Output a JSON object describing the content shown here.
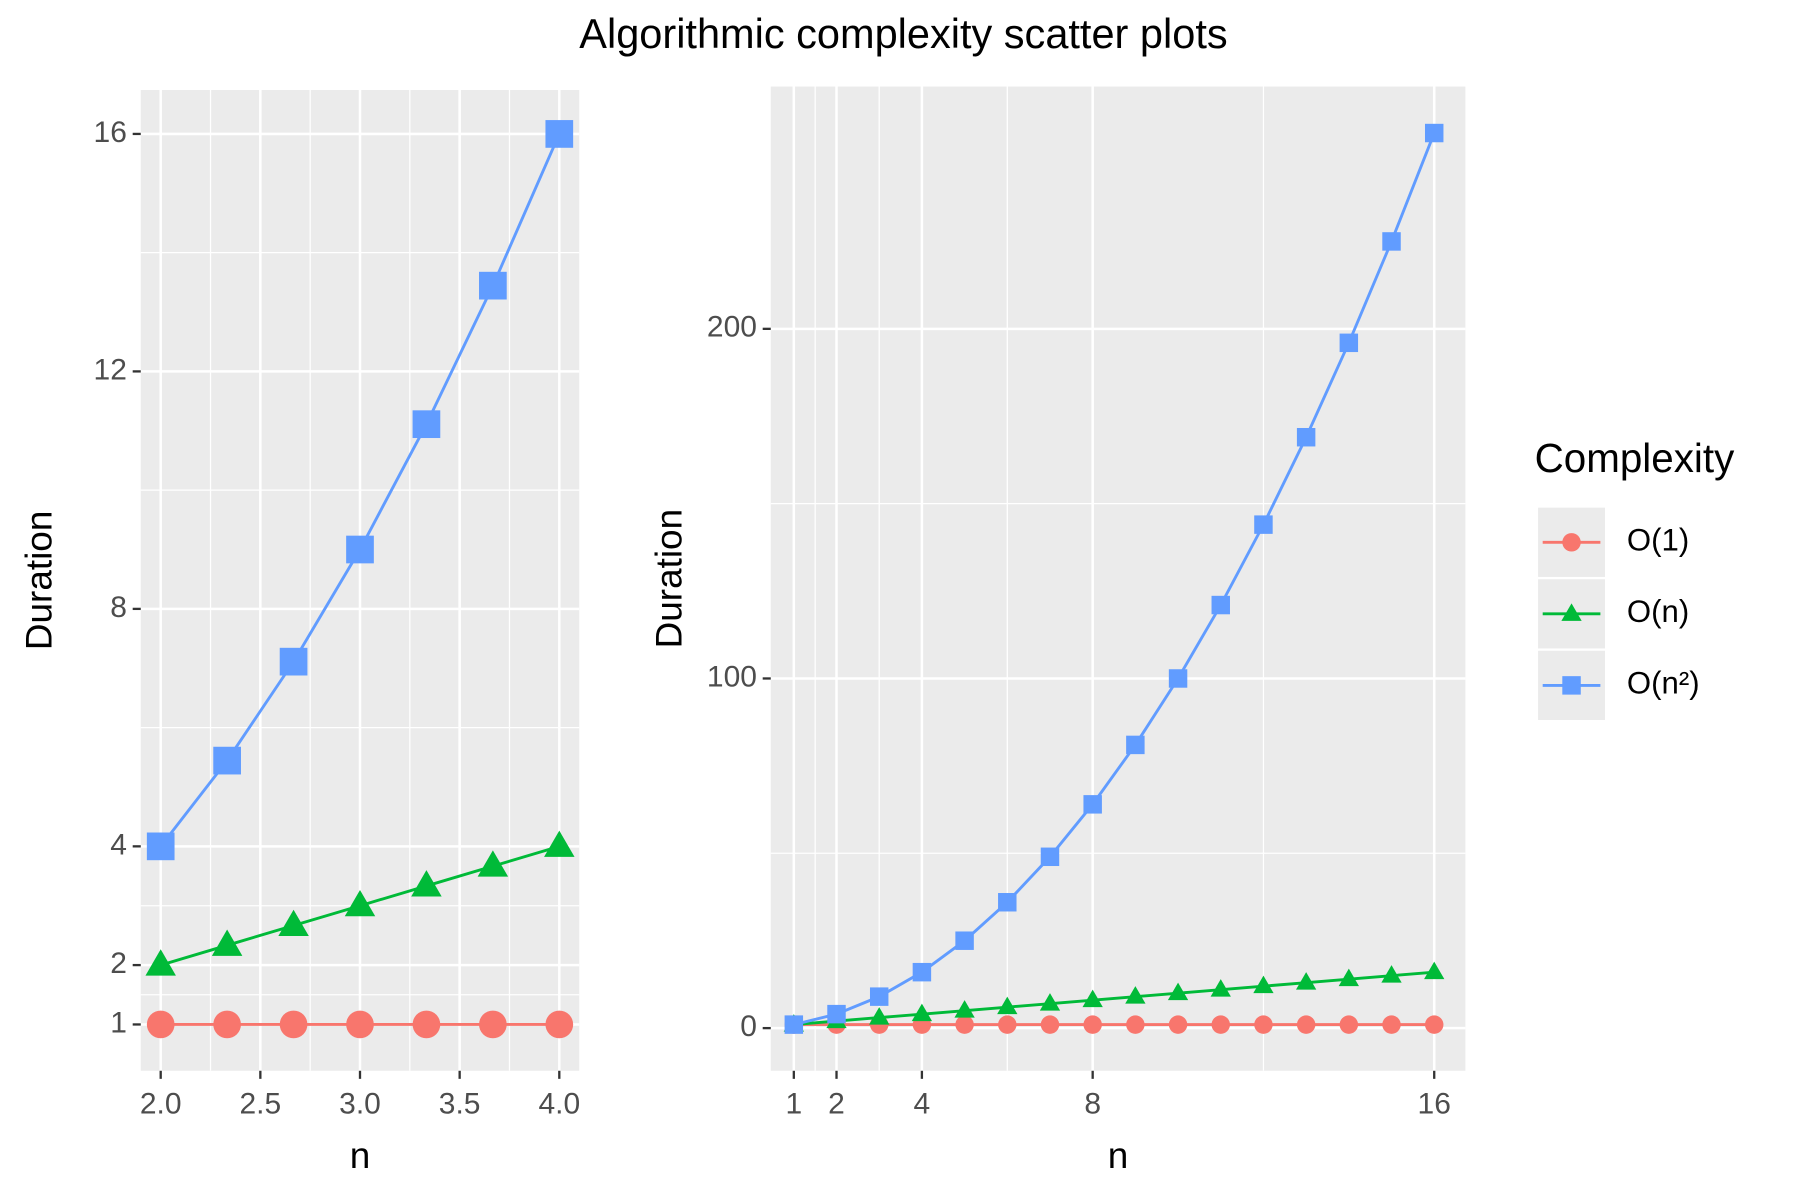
{
  "title": "Algorithmic complexity scatter plots",
  "legend": {
    "title": "Complexity",
    "position": "right",
    "names": [
      "O(1)",
      "O(n)",
      "O(n²)"
    ]
  },
  "chart_data": [
    {
      "type": "line",
      "x_label": "n",
      "y_label": "Duration",
      "x": [
        2,
        2.3333,
        2.6667,
        3,
        3.3333,
        3.6667,
        4
      ],
      "xlim": [
        1.9,
        4.1
      ],
      "ylim": [
        0.22,
        16.74
      ],
      "xticks": [
        {
          "value": 2,
          "label": "2.0"
        },
        2.5,
        {
          "value": 3,
          "label": "3.0"
        },
        3.5,
        {
          "value": 4,
          "label": "4.0"
        }
      ],
      "yticks": [
        1,
        2,
        4,
        8,
        12,
        16
      ],
      "grid": true,
      "series": [
        {
          "color": "#F8766D",
          "marker": "circle",
          "values": [
            1,
            1,
            1,
            1,
            1,
            1,
            1
          ]
        },
        {
          "color": "#00BA38",
          "marker": "triangle",
          "values": [
            2,
            2.3333,
            2.6667,
            3,
            3.3333,
            3.6667,
            4
          ]
        },
        {
          "color": "#619CFF",
          "marker": "square",
          "values": [
            4,
            5.4444,
            7.1111,
            9,
            11.1111,
            13.4444,
            16
          ]
        }
      ]
    },
    {
      "type": "line",
      "x_label": "n",
      "y_label": "Duration",
      "x": [
        1,
        2,
        3,
        4,
        5,
        6,
        7,
        8,
        9,
        10,
        11,
        12,
        13,
        14,
        15,
        16
      ],
      "xlim": [
        0.46,
        16.73
      ],
      "ylim": [
        -12.2,
        269.3
      ],
      "xticks": [
        1,
        2,
        4,
        8,
        16
      ],
      "yticks": [
        0,
        100,
        200
      ],
      "grid": true,
      "series": [
        {
          "color": "#F8766D",
          "marker": "circle",
          "values": [
            1,
            1,
            1,
            1,
            1,
            1,
            1,
            1,
            1,
            1,
            1,
            1,
            1,
            1,
            1,
            1
          ]
        },
        {
          "color": "#00BA38",
          "marker": "triangle",
          "values": [
            1,
            2,
            3,
            4,
            5,
            6,
            7,
            8,
            9,
            10,
            11,
            12,
            13,
            14,
            15,
            16
          ]
        },
        {
          "color": "#619CFF",
          "marker": "square",
          "values": [
            1,
            4,
            9,
            16,
            25,
            36,
            49,
            64,
            81,
            100,
            121,
            144,
            169,
            196,
            225,
            256
          ]
        }
      ]
    }
  ]
}
